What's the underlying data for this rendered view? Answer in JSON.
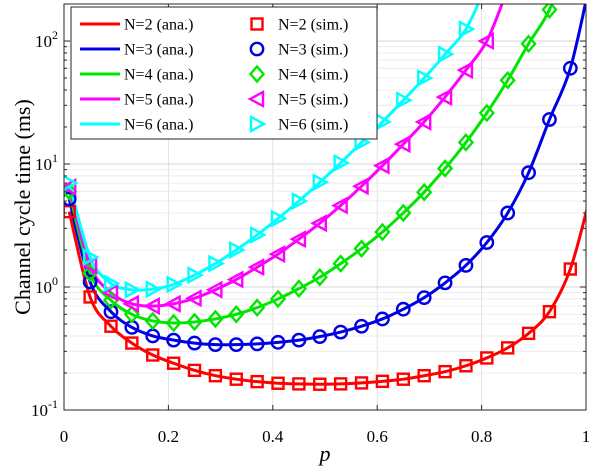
{
  "chart_data": {
    "type": "line",
    "xlabel": "p",
    "ylabel": "Channel cycle time (ms)",
    "xlim": [
      0,
      1
    ],
    "ylim": [
      0.1,
      200
    ],
    "yscale": "log",
    "grid": true,
    "legend_position": "top-left",
    "x_ticks": [
      {
        "value": 0,
        "label": "0"
      },
      {
        "value": 0.2,
        "label": "0.2"
      },
      {
        "value": 0.4,
        "label": "0.4"
      },
      {
        "value": 0.6,
        "label": "0.6"
      },
      {
        "value": 0.8,
        "label": "0.8"
      },
      {
        "value": 1,
        "label": "1"
      }
    ],
    "y_ticks": [
      {
        "value": 0.1,
        "base": "10",
        "exp": "-1"
      },
      {
        "value": 1,
        "base": "10",
        "exp": "0"
      },
      {
        "value": 10,
        "base": "10",
        "exp": "1"
      },
      {
        "value": 100,
        "base": "10",
        "exp": "2"
      }
    ],
    "analytical_series": [
      {
        "name": "N=2 (ana.)",
        "N": 2,
        "color": "#ff0000"
      },
      {
        "name": "N=3 (ana.)",
        "N": 3,
        "color": "#0000e6"
      },
      {
        "name": "N=4 (ana.)",
        "N": 4,
        "color": "#00e600"
      },
      {
        "name": "N=5 (ana.)",
        "N": 5,
        "color": "#ff00ff"
      },
      {
        "name": "N=6 (ana.)",
        "N": 6,
        "color": "#00ffff"
      }
    ],
    "simulation_series": [
      {
        "name": "N=2 (sim.)",
        "N": 2,
        "color": "#ff0000",
        "marker": "square",
        "x": [
          0.01,
          0.05,
          0.09,
          0.13,
          0.17,
          0.21,
          0.25,
          0.29,
          0.33,
          0.37,
          0.41,
          0.45,
          0.49,
          0.53,
          0.57,
          0.61,
          0.65,
          0.69,
          0.73,
          0.77,
          0.81,
          0.85,
          0.89,
          0.93,
          0.97
        ],
        "y": [
          4.1,
          0.83,
          0.48,
          0.35,
          0.28,
          0.24,
          0.21,
          0.19,
          0.178,
          0.17,
          0.165,
          0.163,
          0.162,
          0.163,
          0.166,
          0.171,
          0.178,
          0.19,
          0.205,
          0.229,
          0.265,
          0.32,
          0.42,
          0.63,
          1.4
        ]
      },
      {
        "name": "N=3 (sim.)",
        "N": 3,
        "color": "#0000e6",
        "marker": "circle",
        "x": [
          0.01,
          0.05,
          0.09,
          0.13,
          0.17,
          0.21,
          0.25,
          0.29,
          0.33,
          0.37,
          0.41,
          0.45,
          0.49,
          0.53,
          0.57,
          0.61,
          0.65,
          0.69,
          0.73,
          0.77,
          0.81,
          0.85,
          0.89,
          0.93,
          0.97
        ],
        "y": [
          5.2,
          1.1,
          0.63,
          0.47,
          0.4,
          0.37,
          0.35,
          0.34,
          0.34,
          0.345,
          0.355,
          0.37,
          0.395,
          0.43,
          0.48,
          0.55,
          0.66,
          0.82,
          1.08,
          1.5,
          2.3,
          4,
          8.5,
          23,
          60
        ]
      },
      {
        "name": "N=4 (sim.)",
        "N": 4,
        "color": "#00e600",
        "marker": "diamond",
        "x": [
          0.01,
          0.05,
          0.09,
          0.13,
          0.17,
          0.21,
          0.25,
          0.29,
          0.33,
          0.37,
          0.41,
          0.45,
          0.49,
          0.53,
          0.57,
          0.61,
          0.65,
          0.69,
          0.73,
          0.77,
          0.81,
          0.85,
          0.89,
          0.93
        ],
        "y": [
          6,
          1.3,
          0.78,
          0.6,
          0.53,
          0.51,
          0.52,
          0.55,
          0.6,
          0.68,
          0.8,
          0.97,
          1.2,
          1.55,
          2.05,
          2.8,
          4,
          5.9,
          9.2,
          15,
          26,
          48,
          95,
          180
        ]
      },
      {
        "name": "N=5 (sim.)",
        "N": 5,
        "color": "#ff00ff",
        "marker": "triangle-left",
        "x": [
          0.01,
          0.05,
          0.09,
          0.13,
          0.17,
          0.21,
          0.25,
          0.29,
          0.33,
          0.37,
          0.41,
          0.45,
          0.49,
          0.53,
          0.57,
          0.61,
          0.65,
          0.69,
          0.73,
          0.77,
          0.81
        ],
        "y": [
          6.5,
          1.5,
          0.9,
          0.73,
          0.7,
          0.73,
          0.81,
          0.95,
          1.15,
          1.45,
          1.85,
          2.45,
          3.3,
          4.6,
          6.6,
          9.7,
          14.5,
          22,
          35,
          58,
          100
        ]
      },
      {
        "name": "N=6 (sim.)",
        "N": 6,
        "color": "#00ffff",
        "marker": "triangle-right",
        "x": [
          0.01,
          0.05,
          0.09,
          0.13,
          0.17,
          0.21,
          0.25,
          0.29,
          0.33,
          0.37,
          0.41,
          0.45,
          0.49,
          0.53,
          0.57,
          0.61,
          0.65,
          0.69,
          0.73,
          0.77
        ],
        "y": [
          7,
          1.75,
          1.07,
          0.95,
          0.96,
          1.05,
          1.25,
          1.55,
          2,
          2.65,
          3.6,
          5,
          7.1,
          10.2,
          15,
          22,
          33,
          50,
          78,
          125
        ]
      }
    ]
  }
}
